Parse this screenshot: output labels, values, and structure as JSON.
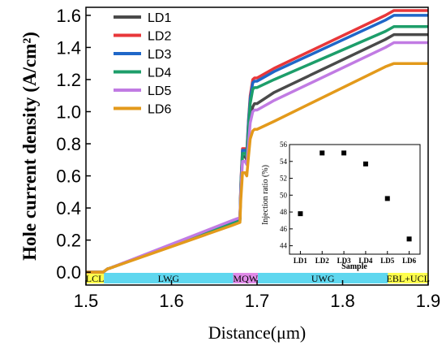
{
  "chart_data": [
    {
      "type": "line",
      "xlabel": "Distance(μm)",
      "ylabel": "Hole current density (A/cm²)",
      "xlim": [
        1.5,
        1.9
      ],
      "ylim": [
        -0.08,
        1.65
      ],
      "xticks": [
        1.5,
        1.6,
        1.7,
        1.8,
        1.9
      ],
      "yticks": [
        0.0,
        0.2,
        0.4,
        0.6,
        0.8,
        1.0,
        1.2,
        1.4,
        1.6
      ],
      "xtick_labels": [
        "1.5",
        "1.6",
        "1.7",
        "1.8",
        "1.9"
      ],
      "ytick_labels": [
        "0.0",
        "0.2",
        "0.4",
        "0.6",
        "0.8",
        "1.0",
        "1.2",
        "1.4",
        "1.6"
      ],
      "grid": false,
      "legend_position": "top-left",
      "regions": [
        {
          "label": "LCL",
          "x0": 1.5,
          "x1": 1.521,
          "color": "#ffff4d"
        },
        {
          "label": "LWG",
          "x0": 1.521,
          "x1": 1.672,
          "color": "#5fd7ef"
        },
        {
          "label": "MQW",
          "x0": 1.672,
          "x1": 1.701,
          "color": "#e08be8"
        },
        {
          "label": "UWG",
          "x0": 1.701,
          "x1": 1.853,
          "color": "#5fd7ef"
        },
        {
          "label": "EBL+UCL",
          "x0": 1.853,
          "x1": 1.9,
          "color": "#ffff4d"
        }
      ],
      "region_label_text": [
        "LCL",
        "LWG",
        "MQW",
        "UWG",
        "EBL+UCL"
      ],
      "series": [
        {
          "name": "LD1",
          "color": "#4a4a4a",
          "x": [
            1.5,
            1.52,
            1.525,
            1.528,
            1.67,
            1.675,
            1.68,
            1.681,
            1.683,
            1.686,
            1.688,
            1.69,
            1.692,
            1.695,
            1.697,
            1.7,
            1.72,
            1.85,
            1.86,
            1.9
          ],
          "y": [
            0.0,
            0.0,
            0.02,
            0.025,
            0.31,
            0.32,
            0.33,
            0.52,
            0.72,
            0.72,
            0.7,
            0.83,
            0.95,
            1.03,
            1.05,
            1.05,
            1.12,
            1.45,
            1.48,
            1.48
          ]
        },
        {
          "name": "LD2",
          "color": "#e8373a",
          "x": [
            1.5,
            1.52,
            1.525,
            1.528,
            1.67,
            1.675,
            1.68,
            1.681,
            1.683,
            1.686,
            1.688,
            1.69,
            1.692,
            1.695,
            1.697,
            1.7,
            1.72,
            1.85,
            1.86,
            1.9
          ],
          "y": [
            0.0,
            0.0,
            0.02,
            0.025,
            0.31,
            0.32,
            0.33,
            0.55,
            0.77,
            0.77,
            0.75,
            0.95,
            1.1,
            1.2,
            1.21,
            1.21,
            1.27,
            1.6,
            1.63,
            1.63
          ]
        },
        {
          "name": "LD3",
          "color": "#1f67c8",
          "x": [
            1.5,
            1.52,
            1.525,
            1.528,
            1.67,
            1.675,
            1.68,
            1.681,
            1.683,
            1.686,
            1.688,
            1.69,
            1.692,
            1.695,
            1.697,
            1.7,
            1.72,
            1.85,
            1.86,
            1.9
          ],
          "y": [
            0.0,
            0.0,
            0.02,
            0.025,
            0.31,
            0.32,
            0.33,
            0.54,
            0.76,
            0.76,
            0.74,
            0.94,
            1.08,
            1.18,
            1.19,
            1.19,
            1.25,
            1.57,
            1.6,
            1.6
          ]
        },
        {
          "name": "LD4",
          "color": "#1d9e6a",
          "x": [
            1.5,
            1.52,
            1.525,
            1.528,
            1.67,
            1.675,
            1.68,
            1.681,
            1.683,
            1.686,
            1.688,
            1.69,
            1.692,
            1.695,
            1.697,
            1.7,
            1.72,
            1.85,
            1.86,
            1.9
          ],
          "y": [
            0.0,
            0.0,
            0.02,
            0.025,
            0.3,
            0.31,
            0.32,
            0.53,
            0.74,
            0.74,
            0.72,
            0.9,
            1.05,
            1.14,
            1.15,
            1.15,
            1.2,
            1.5,
            1.53,
            1.53
          ]
        },
        {
          "name": "LD5",
          "color": "#c17be3",
          "x": [
            1.5,
            1.52,
            1.525,
            1.528,
            1.67,
            1.675,
            1.68,
            1.681,
            1.683,
            1.686,
            1.688,
            1.69,
            1.692,
            1.695,
            1.697,
            1.7,
            1.72,
            1.85,
            1.86,
            1.9
          ],
          "y": [
            0.0,
            0.0,
            0.02,
            0.025,
            0.32,
            0.33,
            0.34,
            0.5,
            0.69,
            0.69,
            0.67,
            0.8,
            0.93,
            1.0,
            1.01,
            1.01,
            1.07,
            1.4,
            1.43,
            1.43
          ]
        },
        {
          "name": "LD6",
          "color": "#e39a1b",
          "x": [
            1.5,
            1.52,
            1.525,
            1.528,
            1.67,
            1.675,
            1.68,
            1.681,
            1.683,
            1.686,
            1.688,
            1.69,
            1.692,
            1.695,
            1.697,
            1.7,
            1.72,
            1.85,
            1.86,
            1.9
          ],
          "y": [
            0.0,
            0.0,
            0.02,
            0.025,
            0.29,
            0.3,
            0.31,
            0.45,
            0.62,
            0.62,
            0.6,
            0.72,
            0.83,
            0.88,
            0.89,
            0.89,
            0.94,
            1.28,
            1.3,
            1.3
          ]
        }
      ]
    },
    {
      "type": "scatter",
      "xlabel": "Sample",
      "ylabel": "Injection ratio (%)",
      "ylim": [
        43,
        56
      ],
      "yticks": [
        44,
        46,
        48,
        50,
        52,
        54,
        56
      ],
      "ytick_labels": [
        "44",
        "46",
        "48",
        "50",
        "52",
        "54",
        "56"
      ],
      "categories": [
        "LD1",
        "LD2",
        "LD3",
        "LD4",
        "LD5",
        "LD6"
      ],
      "values": [
        47.8,
        55.0,
        55.0,
        53.7,
        49.6,
        44.8
      ],
      "marker_color": "#000000",
      "grid": false
    }
  ]
}
